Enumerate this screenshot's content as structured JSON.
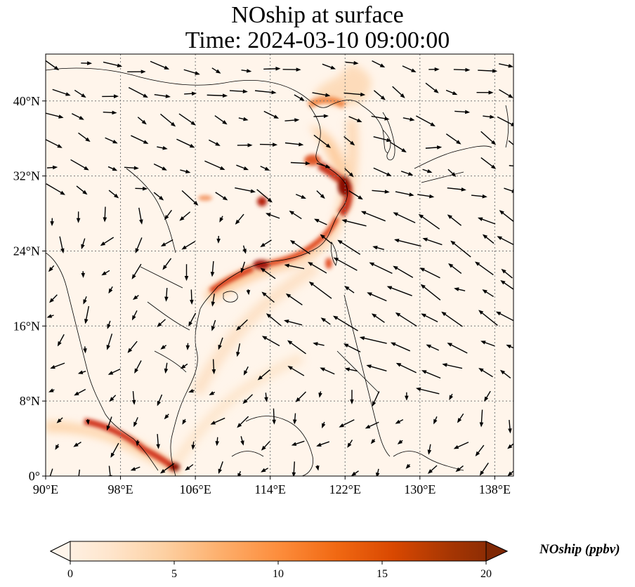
{
  "title": {
    "line1": "NOship at surface",
    "line2": "Time: 2024-03-10 09:00:00"
  },
  "map": {
    "lon_range": [
      90,
      140
    ],
    "lat_range": [
      0,
      45
    ],
    "grid": "dotted",
    "x_ticks": [
      {
        "value": 90,
        "label": "90°E"
      },
      {
        "value": 98,
        "label": "98°E"
      },
      {
        "value": 106,
        "label": "106°E"
      },
      {
        "value": 114,
        "label": "114°E"
      },
      {
        "value": 122,
        "label": "122°E"
      },
      {
        "value": 130,
        "label": "130°E"
      },
      {
        "value": 138,
        "label": "138°E"
      }
    ],
    "y_ticks": [
      {
        "value": 0,
        "label": "0°"
      },
      {
        "value": 8,
        "label": "8°N"
      },
      {
        "value": 16,
        "label": "16°N"
      },
      {
        "value": 24,
        "label": "24°N"
      },
      {
        "value": 32,
        "label": "32°N"
      },
      {
        "value": 40,
        "label": "40°N"
      }
    ]
  },
  "colorbar": {
    "title": "NOship (ppbv)",
    "min": 0,
    "max": 20,
    "ticks": [
      {
        "value": 0,
        "label": "0"
      },
      {
        "value": 5,
        "label": "5"
      },
      {
        "value": 10,
        "label": "10"
      },
      {
        "value": 15,
        "label": "15"
      },
      {
        "value": 20,
        "label": "20"
      }
    ],
    "colors": [
      "#fff5eb",
      "#fee6ce",
      "#fdd0a2",
      "#fdae6b",
      "#fd8d3c",
      "#f16913",
      "#d94801",
      "#a63603",
      "#7f2704"
    ],
    "extend": "both"
  }
}
